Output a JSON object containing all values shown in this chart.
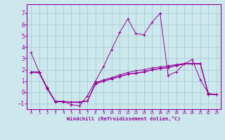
{
  "xlabel": "Windchill (Refroidissement éolien,°C)",
  "background_color": "#cce8ec",
  "line_color": "#990099",
  "xlim": [
    -0.5,
    23.5
  ],
  "ylim": [
    -1.5,
    7.8
  ],
  "yticks": [
    -1,
    0,
    1,
    2,
    3,
    4,
    5,
    6,
    7
  ],
  "xticks": [
    0,
    1,
    2,
    3,
    4,
    5,
    6,
    7,
    8,
    9,
    10,
    11,
    12,
    13,
    14,
    15,
    16,
    17,
    18,
    19,
    20,
    21,
    22,
    23
  ],
  "series": [
    [
      3.5,
      1.8,
      0.4,
      -0.8,
      -0.8,
      -1.1,
      -1.2,
      -0.3,
      1.0,
      2.3,
      3.8,
      5.3,
      6.5,
      5.2,
      5.1,
      6.2,
      7.0,
      1.5,
      1.8,
      2.5,
      2.9,
      1.1,
      -0.1,
      -0.2
    ],
    [
      1.8,
      1.8,
      0.4,
      -0.8,
      -0.8,
      -0.9,
      -0.85,
      -0.75,
      0.85,
      1.1,
      1.3,
      1.55,
      1.75,
      1.9,
      2.0,
      2.15,
      2.25,
      2.35,
      2.45,
      2.55,
      2.55,
      2.55,
      -0.15,
      -0.2
    ],
    [
      1.8,
      1.75,
      0.35,
      -0.82,
      -0.82,
      -0.88,
      -0.88,
      -0.78,
      0.78,
      1.0,
      1.22,
      1.42,
      1.62,
      1.72,
      1.82,
      2.02,
      2.12,
      2.22,
      2.38,
      2.52,
      2.52,
      2.52,
      -0.18,
      -0.2
    ],
    [
      1.75,
      1.72,
      0.32,
      -0.85,
      -0.85,
      -0.88,
      -0.88,
      -0.78,
      0.75,
      0.98,
      1.18,
      1.38,
      1.58,
      1.68,
      1.78,
      1.98,
      2.08,
      2.18,
      2.35,
      2.5,
      2.5,
      2.5,
      -0.18,
      -0.2
    ]
  ]
}
